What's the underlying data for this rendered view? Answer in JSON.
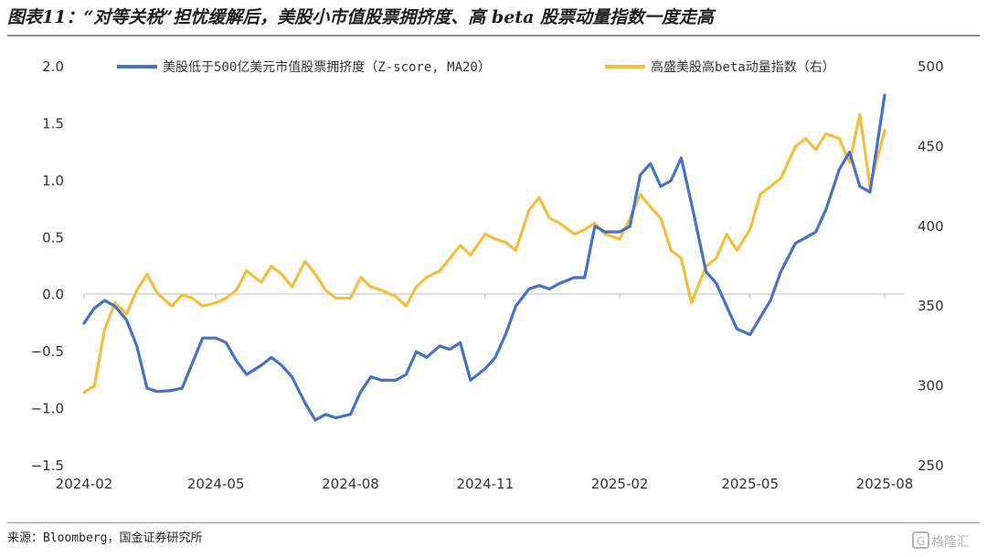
{
  "header": {
    "title": "图表11：“对等关税”担忧缓解后，美股小市值股票拥挤度、高 beta 股票动量指数一度走高"
  },
  "footer": {
    "source": "来源：Bloomberg，国金证券研究所",
    "watermark": "格隆汇"
  },
  "chart_data": {
    "type": "line",
    "title": "",
    "x_ticks": [
      "2024-02",
      "2024-05",
      "2024-08",
      "2024-11",
      "2025-02",
      "2025-05",
      "2025-08"
    ],
    "y_left": {
      "ticks": [
        "2.0",
        "1.5",
        "1.0",
        "0.5",
        "0.0",
        "−0.5",
        "−1.0",
        "−1.5"
      ],
      "ylim": [
        -1.5,
        2.0
      ]
    },
    "y_right": {
      "ticks": [
        "500",
        "450",
        "400",
        "350",
        "300",
        "250"
      ],
      "ylim": [
        250,
        500
      ]
    },
    "legend_position": "top",
    "grid": false,
    "series": [
      {
        "name": "美股低于500亿美元市值股票拥挤度（Z-score, MA20）",
        "axis": "left",
        "color": "#4472C4",
        "x": [
          "2024-02-01",
          "2024-02-08",
          "2024-02-15",
          "2024-02-22",
          "2024-03-01",
          "2024-03-08",
          "2024-03-15",
          "2024-03-22",
          "2024-04-01",
          "2024-04-08",
          "2024-04-15",
          "2024-04-22",
          "2024-05-01",
          "2024-05-08",
          "2024-05-15",
          "2024-05-22",
          "2024-06-01",
          "2024-06-08",
          "2024-06-15",
          "2024-06-22",
          "2024-07-01",
          "2024-07-08",
          "2024-07-15",
          "2024-07-22",
          "2024-08-01",
          "2024-08-08",
          "2024-08-15",
          "2024-08-22",
          "2024-09-01",
          "2024-09-08",
          "2024-09-15",
          "2024-09-22",
          "2024-10-01",
          "2024-10-08",
          "2024-10-15",
          "2024-10-22",
          "2024-11-01",
          "2024-11-08",
          "2024-11-15",
          "2024-11-22",
          "2024-12-01",
          "2024-12-08",
          "2024-12-15",
          "2024-12-22",
          "2025-01-01",
          "2025-01-08",
          "2025-01-15",
          "2025-01-22",
          "2025-02-01",
          "2025-02-08",
          "2025-02-15",
          "2025-02-22",
          "2025-03-01",
          "2025-03-08",
          "2025-03-15",
          "2025-03-22",
          "2025-04-01",
          "2025-04-08",
          "2025-04-15",
          "2025-04-22",
          "2025-05-01",
          "2025-05-08",
          "2025-05-15",
          "2025-05-22",
          "2025-06-01",
          "2025-06-08",
          "2025-06-15",
          "2025-06-22",
          "2025-07-01",
          "2025-07-08",
          "2025-07-15",
          "2025-07-22",
          "2025-08-01"
        ],
        "values": [
          -0.25,
          -0.12,
          -0.05,
          -0.1,
          -0.22,
          -0.45,
          -0.82,
          -0.85,
          -0.84,
          -0.82,
          -0.6,
          -0.38,
          -0.38,
          -0.42,
          -0.58,
          -0.7,
          -0.62,
          -0.55,
          -0.62,
          -0.72,
          -0.95,
          -1.1,
          -1.05,
          -1.08,
          -1.05,
          -0.85,
          -0.72,
          -0.75,
          -0.75,
          -0.7,
          -0.5,
          -0.55,
          -0.45,
          -0.48,
          -0.42,
          -0.75,
          -0.65,
          -0.55,
          -0.35,
          -0.1,
          0.05,
          0.08,
          0.05,
          0.1,
          0.15,
          0.15,
          0.6,
          0.55,
          0.55,
          0.6,
          1.05,
          1.15,
          0.95,
          1.0,
          1.2,
          0.8,
          0.2,
          0.1,
          -0.1,
          -0.3,
          -0.35,
          -0.2,
          -0.05,
          0.2,
          0.45,
          0.5,
          0.55,
          0.75,
          1.1,
          1.25,
          0.95,
          0.9,
          1.75
        ]
      },
      {
        "name": "高盛美股高beta动量指数（右）",
        "axis": "right",
        "color": "#F5BE3C",
        "x": [
          "2024-02-01",
          "2024-02-08",
          "2024-02-15",
          "2024-02-22",
          "2024-03-01",
          "2024-03-08",
          "2024-03-15",
          "2024-03-22",
          "2024-04-01",
          "2024-04-08",
          "2024-04-15",
          "2024-04-22",
          "2024-05-01",
          "2024-05-08",
          "2024-05-15",
          "2024-05-22",
          "2024-06-01",
          "2024-06-08",
          "2024-06-15",
          "2024-06-22",
          "2024-07-01",
          "2024-07-08",
          "2024-07-15",
          "2024-07-22",
          "2024-08-01",
          "2024-08-08",
          "2024-08-15",
          "2024-08-22",
          "2024-09-01",
          "2024-09-08",
          "2024-09-15",
          "2024-09-22",
          "2024-10-01",
          "2024-10-08",
          "2024-10-15",
          "2024-10-22",
          "2024-11-01",
          "2024-11-08",
          "2024-11-15",
          "2024-11-22",
          "2024-12-01",
          "2024-12-08",
          "2024-12-15",
          "2024-12-22",
          "2025-01-01",
          "2025-01-08",
          "2025-01-15",
          "2025-01-22",
          "2025-02-01",
          "2025-02-08",
          "2025-02-15",
          "2025-02-22",
          "2025-03-01",
          "2025-03-08",
          "2025-03-15",
          "2025-03-22",
          "2025-04-01",
          "2025-04-08",
          "2025-04-15",
          "2025-04-22",
          "2025-05-01",
          "2025-05-08",
          "2025-05-15",
          "2025-05-22",
          "2025-06-01",
          "2025-06-08",
          "2025-06-15",
          "2025-06-22",
          "2025-07-01",
          "2025-07-08",
          "2025-07-15",
          "2025-07-22",
          "2025-08-01"
        ],
        "values": [
          296,
          300,
          335,
          352,
          345,
          360,
          370,
          358,
          350,
          357,
          355,
          350,
          352,
          355,
          360,
          372,
          365,
          375,
          370,
          362,
          378,
          370,
          360,
          355,
          355,
          368,
          362,
          360,
          356,
          350,
          362,
          368,
          372,
          380,
          388,
          382,
          395,
          392,
          390,
          385,
          410,
          418,
          405,
          402,
          395,
          398,
          402,
          395,
          392,
          405,
          420,
          412,
          405,
          385,
          380,
          352,
          375,
          380,
          395,
          385,
          398,
          420,
          425,
          430,
          450,
          455,
          448,
          458,
          455,
          440,
          470,
          425,
          460
        ]
      }
    ]
  }
}
